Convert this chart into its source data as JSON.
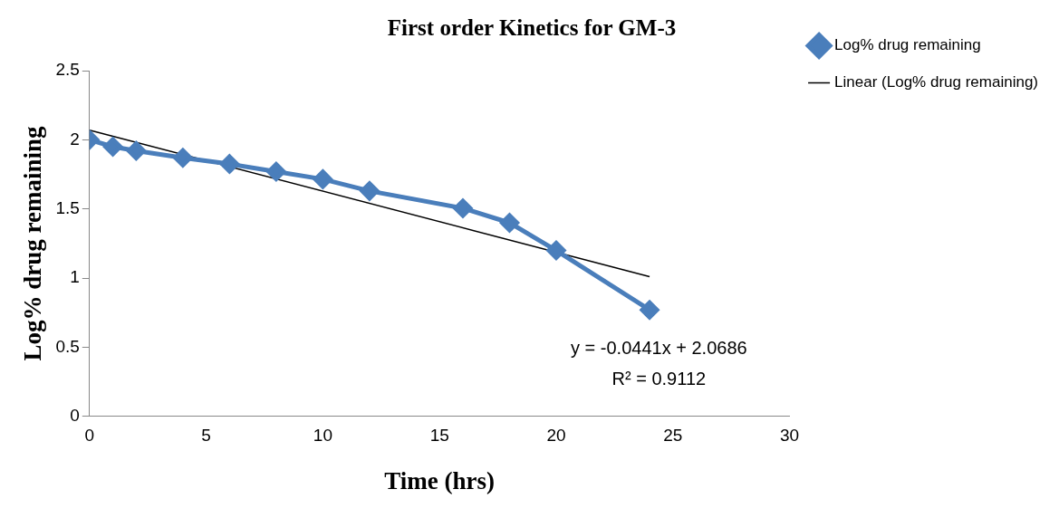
{
  "chart_data": {
    "type": "line",
    "title": "First order Kinetics for GM-3",
    "xlabel": "Time (hrs)",
    "ylabel": "Log% drug remaining",
    "x": [
      0,
      1,
      2,
      4,
      6,
      8,
      10,
      12,
      16,
      18,
      20,
      24
    ],
    "series": [
      {
        "name": "Log% drug remaining",
        "color": "#4a7ebb",
        "values": [
          2.0,
          1.95,
          1.92,
          1.87,
          1.825,
          1.77,
          1.715,
          1.63,
          1.505,
          1.4,
          1.2,
          0.77
        ],
        "marker": "diamond"
      },
      {
        "name": "Linear (Log% drug remaining)",
        "type": "line",
        "color": "#000000",
        "x": [
          0,
          24
        ],
        "values": [
          2.07,
          1.01
        ],
        "marker": "none"
      }
    ],
    "xlim": [
      0,
      30
    ],
    "xticks": [
      0,
      5,
      10,
      15,
      20,
      25,
      30
    ],
    "ylim": [
      0,
      2.5
    ],
    "yticks": [
      0,
      0.5,
      1,
      1.5,
      2,
      2.5
    ],
    "grid": false,
    "legend": "right",
    "annotations": [
      "y = -0.0441x + 2.0686",
      "R² = 0.9112"
    ]
  }
}
